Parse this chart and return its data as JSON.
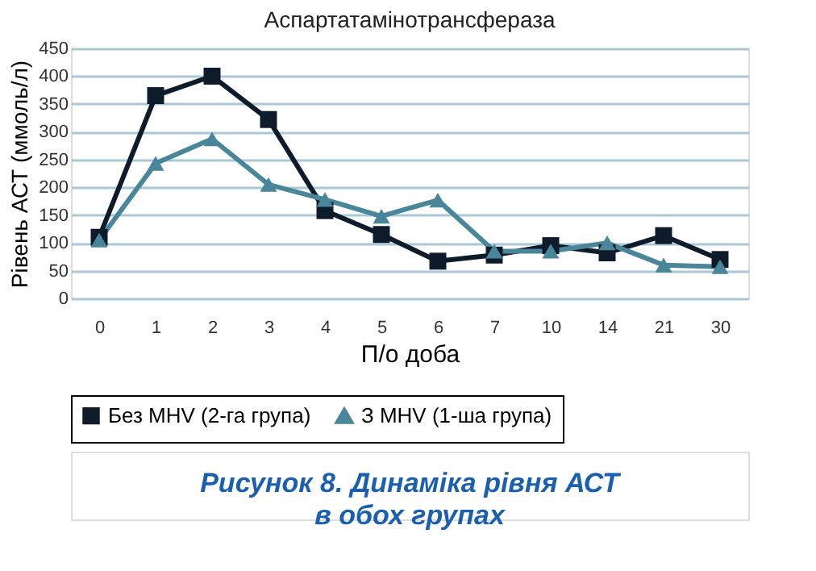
{
  "chart_data": {
    "type": "line",
    "title": "Аспартатамінотрансфераза",
    "xlabel": "П/о доба",
    "ylabel": "Рівень АСТ (ммоль/л)",
    "categories": [
      "0",
      "1",
      "2",
      "3",
      "4",
      "5",
      "6",
      "7",
      "10",
      "14",
      "21",
      "30"
    ],
    "series": [
      {
        "name": "Без MHV (2-га група)",
        "color": "#0d1b2a",
        "marker": "square",
        "values": [
          110,
          365,
          400,
          322,
          158,
          115,
          67,
          78,
          95,
          82,
          113,
          70
        ]
      },
      {
        "name": "З MHV (1-ша група)",
        "color": "#4a8699",
        "marker": "triangle",
        "values": [
          105,
          243,
          287,
          205,
          178,
          148,
          177,
          85,
          85,
          100,
          60,
          57
        ]
      }
    ],
    "ylim": [
      0,
      450
    ],
    "yticks": [
      0,
      50,
      100,
      150,
      200,
      250,
      300,
      350,
      400,
      450
    ],
    "grid": "y",
    "legend": "bottom",
    "line_style": "solid",
    "annotations": [
      "Рисунок 8. Динаміка рівня АСТ\nв обох групах"
    ]
  }
}
